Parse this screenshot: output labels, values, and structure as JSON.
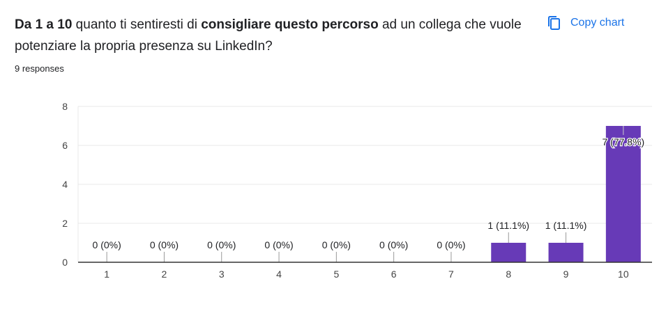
{
  "question": {
    "parts": [
      {
        "text": "Da 1 a 10",
        "bold": true
      },
      {
        "text": " quanto ti sentiresti di ",
        "bold": false
      },
      {
        "text": "consigliare questo percorso",
        "bold": true
      },
      {
        "text": " ad un collega che vuole potenziare la propria presenza su LinkedIn?",
        "bold": false
      }
    ]
  },
  "responses_label": "9 responses",
  "copy_button": {
    "label": "Copy chart",
    "icon": "copy-icon"
  },
  "colors": {
    "bar": "#673ab7",
    "accent": "#1a73e8",
    "grid": "#e8e8e8",
    "axis": "#333333"
  },
  "chart_data": {
    "type": "bar",
    "categories": [
      "1",
      "2",
      "3",
      "4",
      "5",
      "6",
      "7",
      "8",
      "9",
      "10"
    ],
    "values": [
      0,
      0,
      0,
      0,
      0,
      0,
      0,
      1,
      1,
      7
    ],
    "data_labels": [
      "0 (0%)",
      "0 (0%)",
      "0 (0%)",
      "0 (0%)",
      "0 (0%)",
      "0 (0%)",
      "0 (0%)",
      "1 (11.1%)",
      "1 (11.1%)",
      "7 (77.8%)"
    ],
    "yticks": [
      0,
      2,
      4,
      6,
      8
    ],
    "ylim": [
      0,
      8
    ],
    "grid": true,
    "xlabel": "",
    "ylabel": ""
  }
}
